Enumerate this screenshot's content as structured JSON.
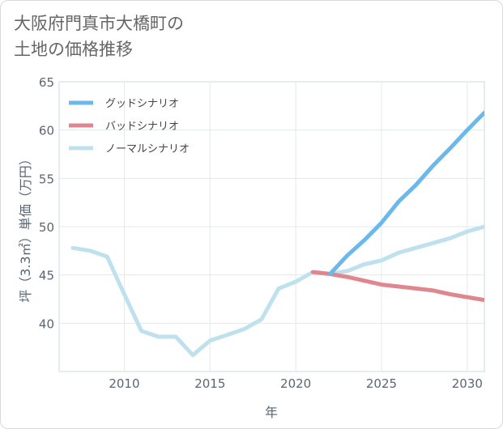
{
  "title_line1": "大阪府門真市大橋町の",
  "title_line2": "土地の価格推移",
  "chart_data": {
    "type": "line",
    "title": "大阪府門真市大橋町の土地の価格推移",
    "xlabel": "年",
    "ylabel": "坪（3.3㎡）単価（万円）",
    "xlim": [
      2006.2,
      2031
    ],
    "ylim": [
      35,
      65
    ],
    "xticks": [
      2010,
      2015,
      2020,
      2025,
      2030
    ],
    "yticks": [
      40,
      45,
      50,
      55,
      60,
      65
    ],
    "grid": true,
    "legend_position": "top-left",
    "series": [
      {
        "name": "グッドシナリオ",
        "color": "#6bb8ea",
        "x": [
          2022,
          2023,
          2024,
          2025,
          2026,
          2027,
          2028,
          2029,
          2030,
          2031
        ],
        "values": [
          45.1,
          47.0,
          48.6,
          50.4,
          52.6,
          54.3,
          56.3,
          58.1,
          60.0,
          61.8
        ]
      },
      {
        "name": "バッドシナリオ",
        "color": "#e0868f",
        "x": [
          2021,
          2022,
          2023,
          2024,
          2025,
          2026,
          2027,
          2028,
          2029,
          2030,
          2031
        ],
        "values": [
          45.3,
          45.1,
          44.8,
          44.4,
          44.0,
          43.8,
          43.6,
          43.4,
          43.0,
          42.7,
          42.4
        ]
      },
      {
        "name": "ノーマルシナリオ",
        "color": "#bfe1ee",
        "x": [
          2007,
          2008,
          2009,
          2010,
          2011,
          2012,
          2013,
          2014,
          2015,
          2016,
          2017,
          2018,
          2019,
          2020,
          2021,
          2022,
          2023,
          2024,
          2025,
          2026,
          2027,
          2028,
          2029,
          2030,
          2031
        ],
        "values": [
          47.8,
          47.5,
          46.9,
          43.0,
          39.2,
          38.6,
          38.6,
          36.7,
          38.2,
          38.8,
          39.4,
          40.4,
          43.6,
          44.3,
          45.3,
          45.1,
          45.4,
          46.1,
          46.5,
          47.3,
          47.8,
          48.3,
          48.8,
          49.5,
          50.0
        ]
      }
    ]
  }
}
